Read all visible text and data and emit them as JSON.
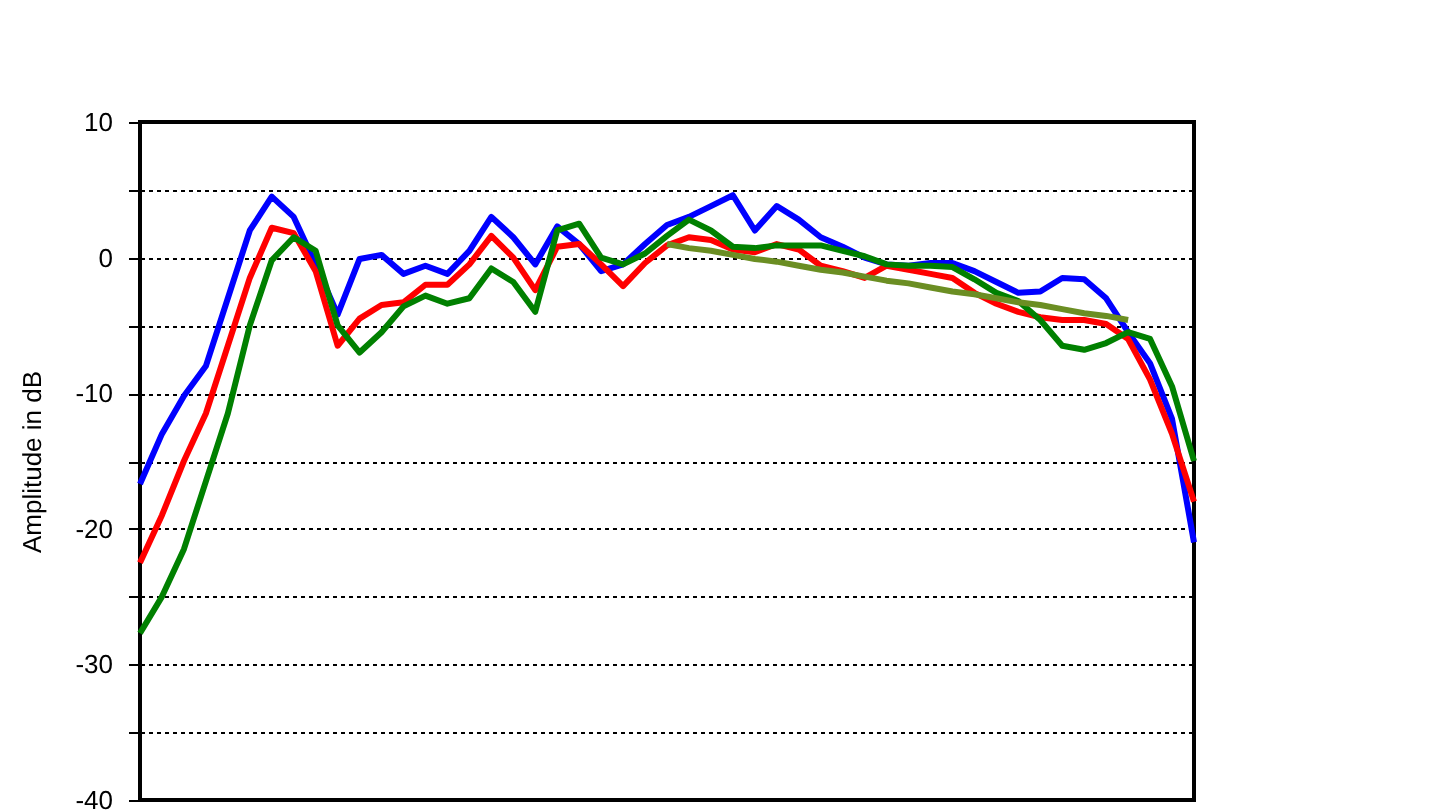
{
  "chart_data": {
    "type": "line",
    "ylabel": "Amplitude in dB",
    "categories": [
      null,
      null,
      null,
      null,
      null,
      null,
      null,
      null,
      null,
      null,
      null,
      null,
      null,
      null,
      null,
      null,
      null,
      null,
      null,
      null,
      null,
      null,
      null,
      null,
      null,
      null,
      null,
      null,
      null,
      null,
      null,
      null,
      null,
      null,
      null,
      null,
      null,
      null,
      null,
      null,
      null,
      null,
      null,
      null,
      null,
      null,
      null,
      null,
      null
    ],
    "series": [
      {
        "color": "#0000ff",
        "values": [
          -16.7,
          -13.0,
          -10.2,
          -8.0,
          -3.0,
          2.0,
          4.5,
          3.0,
          -0.5,
          -4.2,
          -0.1,
          0.2,
          -1.2,
          -0.6,
          -1.2,
          0.5,
          3.0,
          1.5,
          -0.5,
          2.3,
          1.0,
          -1.0,
          -0.5,
          1.0,
          2.4,
          3.0,
          3.8,
          4.6,
          2.0,
          3.8,
          2.8,
          1.5,
          0.8,
          0.0,
          -0.5,
          -0.6,
          -0.4,
          -0.4,
          -1.0,
          -1.8,
          -2.6,
          -2.5,
          -1.5,
          -1.6,
          -3.0,
          -5.5,
          -7.8,
          -11.9,
          -21.0
        ]
      },
      {
        "color": "#ff0000",
        "values": [
          -22.5,
          -19.0,
          -15.0,
          -11.5,
          -6.5,
          -1.5,
          2.2,
          1.8,
          -1.0,
          -6.5,
          -4.5,
          -3.5,
          -3.3,
          -2.0,
          -2.0,
          -0.5,
          1.6,
          0.0,
          -2.4,
          0.8,
          1.0,
          -0.5,
          -2.1,
          -0.4,
          0.9,
          1.5,
          1.3,
          0.6,
          0.4,
          1.0,
          0.6,
          -0.6,
          -1.0,
          -1.5,
          -0.6,
          -0.9,
          -1.2,
          -1.5,
          -2.6,
          -3.4,
          -4.0,
          -4.4,
          -4.6,
          -4.6,
          -4.9,
          -6.0,
          -9.0,
          -13.0,
          -18.0
        ]
      },
      {
        "color": "#008000",
        "values": [
          -27.7,
          -25.0,
          -21.5,
          -16.5,
          -11.5,
          -5.0,
          -0.2,
          1.5,
          0.5,
          -5.0,
          -7.0,
          -5.5,
          -3.6,
          -2.8,
          -3.4,
          -3.0,
          -0.8,
          -1.8,
          -4.0,
          2.0,
          2.5,
          0.0,
          -0.5,
          0.3,
          1.6,
          2.8,
          2.0,
          0.8,
          0.7,
          0.9,
          0.9,
          0.9,
          0.5,
          0.1,
          -0.5,
          -0.6,
          -0.6,
          -0.7,
          -1.6,
          -2.6,
          -3.2,
          -4.6,
          -6.5,
          -6.8,
          -6.3,
          -5.5,
          -6.0,
          -9.5,
          -15.0
        ]
      },
      {
        "color": "#6b8e23",
        "values": [
          null,
          null,
          null,
          null,
          null,
          null,
          null,
          null,
          null,
          null,
          null,
          null,
          null,
          null,
          null,
          null,
          null,
          null,
          null,
          null,
          null,
          null,
          null,
          null,
          1.0,
          0.7,
          0.5,
          0.2,
          -0.1,
          -0.3,
          -0.6,
          -0.9,
          -1.1,
          -1.4,
          -1.7,
          -1.9,
          -2.2,
          -2.5,
          -2.7,
          -3.0,
          -3.3,
          -3.5,
          -3.8,
          -4.1,
          -4.3,
          -4.6,
          null,
          null,
          null
        ]
      }
    ],
    "ylim": [
      -40,
      10
    ],
    "yticks": [
      -40,
      {
        "value": -35,
        "label": null
      },
      -30,
      {
        "value": -25,
        "label": null
      },
      -20,
      {
        "value": -15,
        "label": null
      },
      -10,
      {
        "value": -5,
        "label": null
      },
      0,
      {
        "value": 5,
        "label": null
      },
      10
    ],
    "grid": "y",
    "marker": "none",
    "line_style": "solid"
  }
}
